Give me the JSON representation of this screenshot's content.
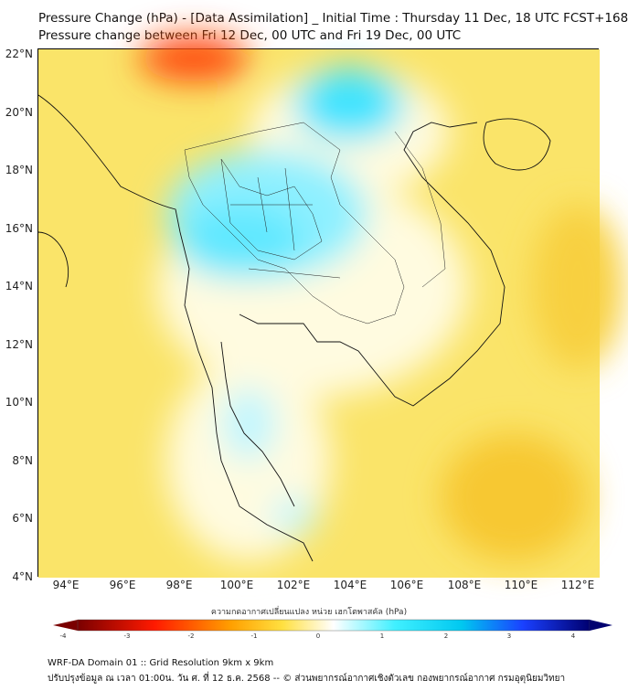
{
  "title": {
    "line1": "Pressure Change (hPa) - [Data Assimilation] _ Initial Time : Thursday 11 Dec, 18 UTC FCST+168",
    "line2": "Pressure change between Fri 12 Dec, 00 UTC and Fri 19 Dec, 00 UTC"
  },
  "map": {
    "lat_labels": [
      "22°N",
      "20°N",
      "18°N",
      "16°N",
      "14°N",
      "12°N",
      "10°N",
      "8°N",
      "6°N",
      "4°N"
    ],
    "lon_labels": [
      "94°E",
      "96°E",
      "98°E",
      "100°E",
      "102°E",
      "104°E",
      "106°E",
      "108°E",
      "110°E",
      "112°E"
    ],
    "lon_range": [
      93.0,
      112.7
    ],
    "lat_range": [
      4.0,
      22.2
    ]
  },
  "colorbar": {
    "label": "ความกดอากาศเปลี่ยนแปลง หน่วย เฮกโตพาสคัล (hPa)",
    "ticks": [
      "-4",
      "-3",
      "-2",
      "-1",
      "0",
      "1",
      "2",
      "3",
      "4"
    ],
    "range": [
      -4,
      4
    ],
    "colors": [
      "#7a0000",
      "#ff1a00",
      "#ffa000",
      "#ffe040",
      "#ffffff",
      "#40f0ff",
      "#00c8f0",
      "#1a40ff",
      "#000070"
    ]
  },
  "footer": {
    "line1": "WRF-DA Domain 01 :: Grid Resolution 9km x 9km",
    "line2": "ปรับปรุงข้อมูล ณ เวลา 01:00น. วัน ศ. ที่ 12 ธ.ค. 2568 -- © ส่วนพยากรณ์อากาศเชิงตัวเลข กองพยากรณ์อากาศ กรมอุตุนิยมวิทยา"
  }
}
